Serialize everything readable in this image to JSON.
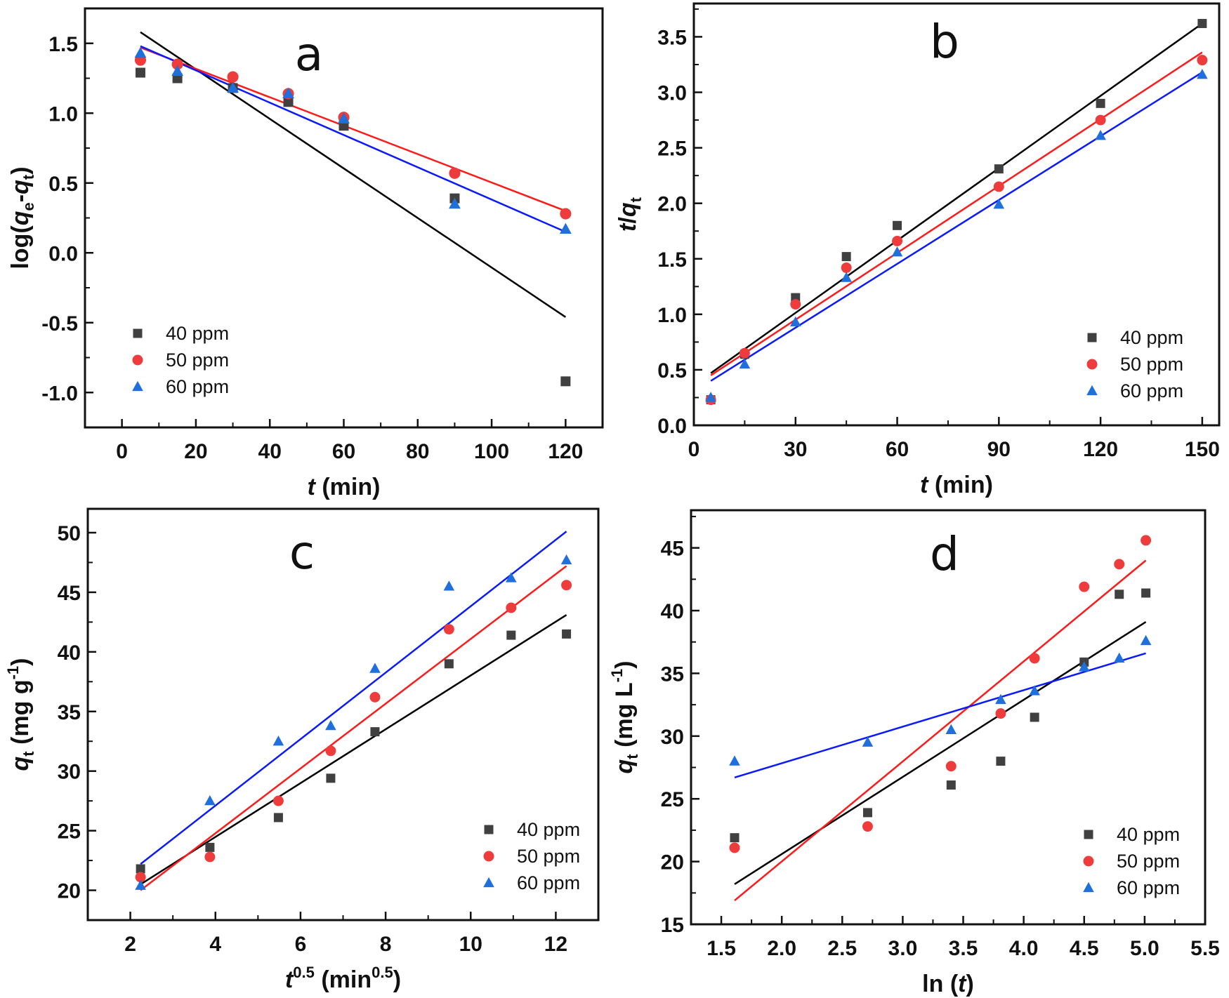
{
  "figure": {
    "series_colors": {
      "40 ppm": "#404040",
      "50 ppm": "#ee3b3b",
      "60 ppm": "#1f6fdc"
    },
    "fit_colors": {
      "40 ppm": "#000000",
      "50 ppm": "#ff1a1a",
      "60 ppm": "#0a1aff"
    }
  },
  "chart_data": [
    {
      "panel": "a",
      "type": "scatter",
      "title": "a",
      "xlabel": "t (min)",
      "ylabel": "log(qe-qt)",
      "xlim": [
        -10,
        130
      ],
      "ylim": [
        -1.25,
        1.75
      ],
      "xticks": [
        0,
        20,
        40,
        60,
        80,
        100,
        120
      ],
      "xtick_labels": [
        "0",
        "20",
        "40",
        "60",
        "80",
        "100",
        "120"
      ],
      "yticks": [
        -1.0,
        -0.5,
        0.0,
        0.5,
        1.0,
        1.5
      ],
      "ytick_labels": [
        "-1.0",
        "-0.5",
        "0.0",
        "0.5",
        "1.0",
        "1.5"
      ],
      "grid": false,
      "legend_position": "bottom-left",
      "series": [
        {
          "name": "40 ppm",
          "marker": "square",
          "x": [
            5,
            15,
            30,
            45,
            60,
            90,
            120
          ],
          "y": [
            1.29,
            1.25,
            1.18,
            1.08,
            0.91,
            0.39,
            -0.92
          ],
          "fit": {
            "x": [
              5,
              120
            ],
            "y": [
              1.58,
              -0.46
            ]
          }
        },
        {
          "name": "50 ppm",
          "marker": "circle",
          "x": [
            5,
            15,
            30,
            45,
            60,
            90,
            120
          ],
          "y": [
            1.38,
            1.35,
            1.26,
            1.14,
            0.97,
            0.57,
            0.28
          ],
          "fit": {
            "x": [
              5,
              120
            ],
            "y": [
              1.47,
              0.3
            ]
          }
        },
        {
          "name": "60 ppm",
          "marker": "triangle",
          "x": [
            5,
            15,
            30,
            45,
            60,
            90,
            120
          ],
          "y": [
            1.43,
            1.3,
            1.18,
            1.14,
            0.96,
            0.35,
            0.17
          ],
          "fit": {
            "x": [
              5,
              120
            ],
            "y": [
              1.48,
              0.15
            ]
          }
        }
      ]
    },
    {
      "panel": "b",
      "type": "scatter",
      "title": "b",
      "xlabel": "t (min)",
      "ylabel": "t/qt",
      "xlim": [
        0,
        155
      ],
      "ylim": [
        0,
        3.8
      ],
      "xticks": [
        0,
        30,
        60,
        90,
        120,
        150
      ],
      "xtick_labels": [
        "0",
        "30",
        "60",
        "90",
        "120",
        "150"
      ],
      "yticks": [
        0.0,
        0.5,
        1.0,
        1.5,
        2.0,
        2.5,
        3.0,
        3.5
      ],
      "ytick_labels": [
        "0.0",
        "0.5",
        "1.0",
        "1.5",
        "2.0",
        "2.5",
        "3.0",
        "3.5"
      ],
      "grid": false,
      "legend_position": "bottom-right",
      "series": [
        {
          "name": "40 ppm",
          "marker": "square",
          "x": [
            5,
            15,
            30,
            45,
            60,
            90,
            120,
            150
          ],
          "y": [
            0.23,
            0.64,
            1.15,
            1.52,
            1.8,
            2.31,
            2.9,
            3.62
          ],
          "fit": {
            "x": [
              5,
              150
            ],
            "y": [
              0.47,
              3.62
            ]
          }
        },
        {
          "name": "50 ppm",
          "marker": "circle",
          "x": [
            5,
            15,
            30,
            45,
            60,
            90,
            120,
            150
          ],
          "y": [
            0.23,
            0.65,
            1.09,
            1.42,
            1.66,
            2.15,
            2.75,
            3.29
          ],
          "fit": {
            "x": [
              5,
              150
            ],
            "y": [
              0.45,
              3.36
            ]
          }
        },
        {
          "name": "60 ppm",
          "marker": "triangle",
          "x": [
            5,
            15,
            30,
            45,
            60,
            90,
            120,
            150
          ],
          "y": [
            0.25,
            0.55,
            0.93,
            1.33,
            1.56,
            1.99,
            2.61,
            3.16
          ],
          "fit": {
            "x": [
              5,
              150
            ],
            "y": [
              0.4,
              3.18
            ]
          }
        }
      ]
    },
    {
      "panel": "c",
      "type": "scatter",
      "title": "c",
      "xlabel": "t^0.5 (min^0.5)",
      "ylabel": "qt (mg g^-1)",
      "xlim": [
        1,
        13
      ],
      "ylim": [
        17.5,
        52
      ],
      "xticks": [
        2,
        4,
        6,
        8,
        10,
        12
      ],
      "xtick_labels": [
        "2",
        "4",
        "6",
        "8",
        "10",
        "12"
      ],
      "yticks": [
        20,
        25,
        30,
        35,
        40,
        45,
        50
      ],
      "ytick_labels": [
        "20",
        "25",
        "30",
        "35",
        "40",
        "45",
        "50"
      ],
      "grid": false,
      "legend_position": "bottom-right",
      "series": [
        {
          "name": "40 ppm",
          "marker": "square",
          "x": [
            2.24,
            3.87,
            5.48,
            6.71,
            7.75,
            9.49,
            10.95,
            12.25
          ],
          "y": [
            21.8,
            23.6,
            26.1,
            29.4,
            33.3,
            39.0,
            41.4,
            41.5
          ],
          "fit": {
            "x": [
              2.24,
              12.25
            ],
            "y": [
              20.5,
              43.1
            ]
          }
        },
        {
          "name": "50 ppm",
          "marker": "circle",
          "x": [
            2.24,
            3.87,
            5.48,
            6.71,
            7.75,
            9.49,
            10.95,
            12.25
          ],
          "y": [
            21.1,
            22.8,
            27.5,
            31.7,
            36.2,
            41.9,
            43.7,
            45.6
          ],
          "fit": {
            "x": [
              2.24,
              12.25
            ],
            "y": [
              20.0,
              47.2
            ]
          }
        },
        {
          "name": "60 ppm",
          "marker": "triangle",
          "x": [
            2.24,
            3.87,
            5.48,
            6.71,
            7.75,
            9.49,
            10.95,
            12.25
          ],
          "y": [
            20.4,
            27.5,
            32.5,
            33.8,
            38.6,
            45.5,
            46.2,
            47.7
          ],
          "fit": {
            "x": [
              2.24,
              12.25
            ],
            "y": [
              22.2,
              50.1
            ]
          }
        }
      ]
    },
    {
      "panel": "d",
      "type": "scatter",
      "title": "d",
      "xlabel": "ln (t)",
      "ylabel": "qt (mg L^-1)",
      "xlim": [
        1.25,
        5.5
      ],
      "ylim": [
        15,
        48
      ],
      "xticks": [
        1.5,
        2.0,
        2.5,
        3.0,
        3.5,
        4.0,
        4.5,
        5.0,
        5.5
      ],
      "xtick_labels": [
        "1.5",
        "2.0",
        "2.5",
        "3.0",
        "3.5",
        "4.0",
        "4.5",
        "5.0",
        "5.5"
      ],
      "yticks": [
        15,
        20,
        25,
        30,
        35,
        40,
        45
      ],
      "ytick_labels": [
        "15",
        "20",
        "25",
        "30",
        "35",
        "40",
        "45"
      ],
      "grid": false,
      "legend_position": "bottom-right",
      "series": [
        {
          "name": "40 ppm",
          "marker": "square",
          "x": [
            1.61,
            2.71,
            3.4,
            3.81,
            4.09,
            4.5,
            4.79,
            5.01
          ],
          "y": [
            21.9,
            23.9,
            26.1,
            28.0,
            31.5,
            35.9,
            41.3,
            41.4
          ],
          "fit": {
            "x": [
              1.61,
              5.01
            ],
            "y": [
              18.2,
              39.1
            ]
          }
        },
        {
          "name": "50 ppm",
          "marker": "circle",
          "x": [
            1.61,
            2.71,
            3.4,
            3.81,
            4.09,
            4.5,
            4.79,
            5.01
          ],
          "y": [
            21.1,
            22.8,
            27.6,
            31.8,
            36.2,
            41.9,
            43.7,
            45.6
          ],
          "fit": {
            "x": [
              1.61,
              5.01
            ],
            "y": [
              16.9,
              44.0
            ]
          }
        },
        {
          "name": "60 ppm",
          "marker": "triangle",
          "x": [
            1.61,
            2.71,
            3.4,
            3.81,
            4.09,
            4.5,
            4.79,
            5.01
          ],
          "y": [
            28.0,
            29.5,
            30.5,
            32.9,
            33.6,
            35.5,
            36.2,
            37.6
          ],
          "fit": {
            "x": [
              1.61,
              5.01
            ],
            "y": [
              26.7,
              36.6
            ]
          }
        }
      ]
    }
  ]
}
